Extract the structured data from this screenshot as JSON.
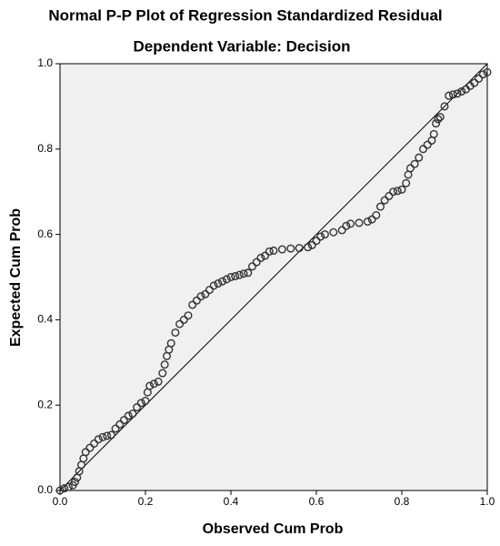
{
  "chart_data": {
    "type": "scatter",
    "title": "Normal P-P Plot of Regression Standardized Residual",
    "subtitle": "Dependent Variable: Decision",
    "xlabel": "Observed Cum Prob",
    "ylabel": "Expected Cum Prob",
    "xlim": [
      0,
      1
    ],
    "ylim": [
      0,
      1
    ],
    "xticks": [
      {
        "value": 0,
        "label": "0.0"
      },
      0.2,
      0.4,
      0.6,
      0.8,
      {
        "value": 1,
        "label": "1.0"
      }
    ],
    "yticks": [
      {
        "value": 0,
        "label": "0.0"
      },
      0.2,
      0.4,
      0.6,
      0.8,
      {
        "value": 1,
        "label": "1.0"
      }
    ],
    "color": "#333333",
    "background": "#f0f0f0",
    "x": [
      0.0,
      0.01,
      0.02,
      0.03,
      0.035,
      0.04,
      0.045,
      0.05,
      0.055,
      0.06,
      0.07,
      0.08,
      0.09,
      0.1,
      0.11,
      0.12,
      0.13,
      0.14,
      0.15,
      0.16,
      0.17,
      0.18,
      0.19,
      0.2,
      0.205,
      0.21,
      0.22,
      0.23,
      0.24,
      0.245,
      0.25,
      0.255,
      0.26,
      0.27,
      0.28,
      0.29,
      0.3,
      0.31,
      0.32,
      0.33,
      0.34,
      0.35,
      0.36,
      0.37,
      0.38,
      0.39,
      0.4,
      0.41,
      0.42,
      0.43,
      0.44,
      0.45,
      0.46,
      0.47,
      0.48,
      0.49,
      0.5,
      0.52,
      0.54,
      0.56,
      0.58,
      0.59,
      0.6,
      0.61,
      0.62,
      0.64,
      0.66,
      0.67,
      0.68,
      0.7,
      0.72,
      0.73,
      0.74,
      0.75,
      0.76,
      0.77,
      0.78,
      0.79,
      0.8,
      0.81,
      0.815,
      0.82,
      0.83,
      0.84,
      0.85,
      0.86,
      0.87,
      0.875,
      0.88,
      0.885,
      0.89,
      0.9,
      0.91,
      0.92,
      0.93,
      0.94,
      0.95,
      0.96,
      0.97,
      0.98,
      0.99,
      1.0
    ],
    "values": [
      0.0,
      0.005,
      0.008,
      0.012,
      0.02,
      0.03,
      0.045,
      0.06,
      0.075,
      0.09,
      0.1,
      0.11,
      0.12,
      0.125,
      0.128,
      0.13,
      0.145,
      0.155,
      0.165,
      0.175,
      0.18,
      0.195,
      0.205,
      0.21,
      0.23,
      0.245,
      0.25,
      0.255,
      0.275,
      0.295,
      0.315,
      0.33,
      0.345,
      0.37,
      0.39,
      0.4,
      0.41,
      0.435,
      0.445,
      0.455,
      0.46,
      0.47,
      0.48,
      0.485,
      0.49,
      0.495,
      0.5,
      0.502,
      0.505,
      0.508,
      0.51,
      0.525,
      0.535,
      0.545,
      0.55,
      0.56,
      0.562,
      0.565,
      0.567,
      0.568,
      0.57,
      0.575,
      0.585,
      0.595,
      0.6,
      0.605,
      0.61,
      0.62,
      0.625,
      0.627,
      0.63,
      0.635,
      0.645,
      0.665,
      0.68,
      0.69,
      0.7,
      0.702,
      0.705,
      0.72,
      0.74,
      0.755,
      0.765,
      0.78,
      0.8,
      0.81,
      0.82,
      0.835,
      0.86,
      0.87,
      0.875,
      0.9,
      0.925,
      0.928,
      0.93,
      0.935,
      0.94,
      0.948,
      0.955,
      0.965,
      0.975,
      0.98
    ]
  }
}
